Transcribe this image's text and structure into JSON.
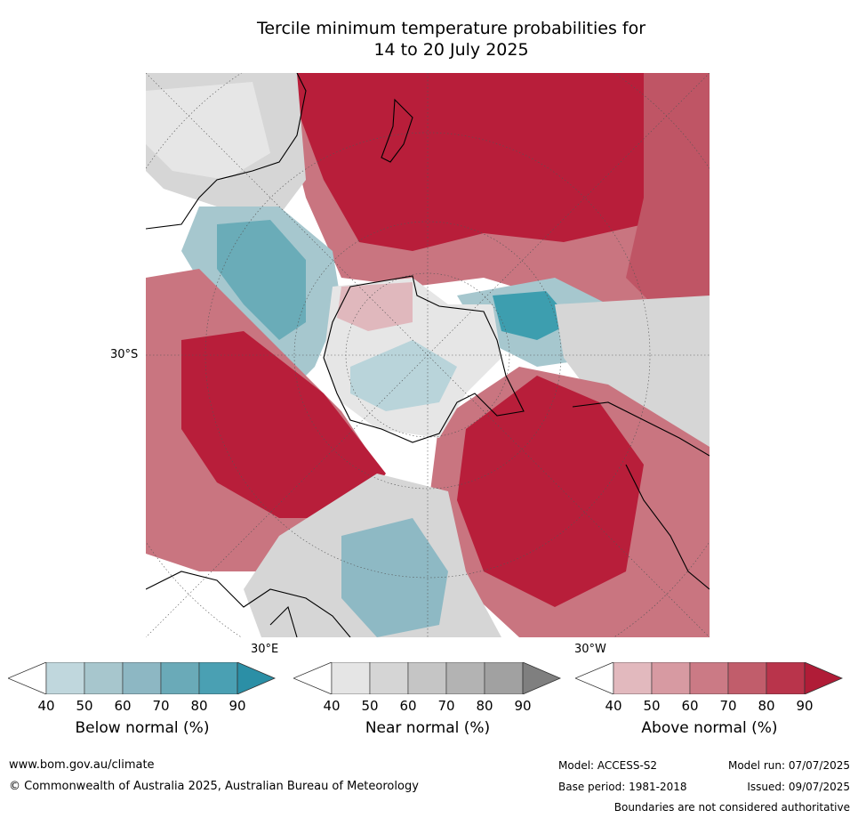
{
  "title": {
    "line1": "Tercile minimum temperature probabilities for",
    "line2": "14 to 20 July 2025"
  },
  "map": {
    "projection": "south-polar stereographic",
    "lat_label": "30°S",
    "lon_labels": [
      "30°E",
      "30°W"
    ],
    "colors": {
      "above": [
        "#e0b8bd",
        "#d4979f",
        "#c97580",
        "#bf5565",
        "#b81e3a"
      ],
      "near": [
        "#e6e6e6",
        "#d6d6d6",
        "#c6c6c6",
        "#b4b4b4",
        "#a2a2a2"
      ],
      "below": [
        "#b9d4da",
        "#a6c7ce",
        "#8eb9c4",
        "#6aacb8",
        "#3d9eaf"
      ],
      "coastline": "#000000"
    }
  },
  "colorbars": [
    {
      "label": "Below normal (%)",
      "ticks": [
        "40",
        "50",
        "60",
        "70",
        "80",
        "90"
      ],
      "colors": [
        "#ffffff",
        "#c0d7dd",
        "#a7c6cd",
        "#8db7c3",
        "#6aaab8",
        "#4aa0b3",
        "#2b8fa6"
      ]
    },
    {
      "label": "Near normal (%)",
      "ticks": [
        "40",
        "50",
        "60",
        "70",
        "80",
        "90"
      ],
      "colors": [
        "#ffffff",
        "#e5e5e5",
        "#d5d5d5",
        "#c5c5c5",
        "#b3b3b3",
        "#a1a1a1",
        "#7f7f7f"
      ]
    },
    {
      "label": "Above normal (%)",
      "ticks": [
        "40",
        "50",
        "60",
        "70",
        "80",
        "90"
      ],
      "colors": [
        "#ffffff",
        "#e2b9be",
        "#d79aa2",
        "#cb7a85",
        "#c15d6b",
        "#b9344b",
        "#b01c37"
      ]
    }
  ],
  "footer": {
    "website": "www.bom.gov.au/climate",
    "copyright": "© Commonwealth of Australia 2025, Australian Bureau of Meteorology",
    "model": "Model: ACCESS-S2",
    "base_period": "Base period: 1981-2018",
    "model_run": "Model run: 07/07/2025",
    "issued": "Issued: 09/07/2025",
    "disclaimer": "Boundaries are not considered authoritative"
  }
}
